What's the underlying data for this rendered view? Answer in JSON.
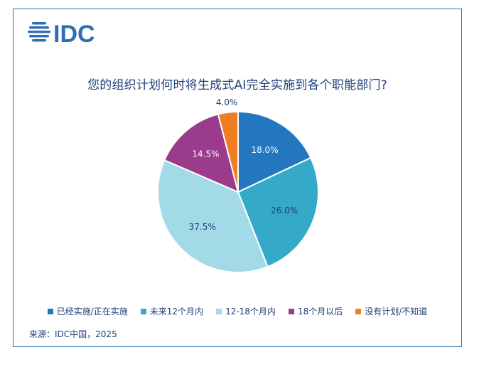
{
  "brand": {
    "logo_text": "IDC",
    "color": "#2f6db5"
  },
  "chart_data": {
    "type": "pie",
    "title": "您的组织计划何时将生成式AI完全实施到各个职能部门?",
    "slices": [
      {
        "label": "已经实施/正在实施",
        "value": 18.0,
        "display": "18.0%",
        "color": "#2277be"
      },
      {
        "label": "未来12个月内",
        "value": 26.0,
        "display": "26.0%",
        "color": "#34aac8"
      },
      {
        "label": "12-18个月内",
        "value": 37.5,
        "display": "37.5%",
        "color": "#a2dbe7"
      },
      {
        "label": "18个月以后",
        "value": 14.5,
        "display": "14.5%",
        "color": "#9b3b8c"
      },
      {
        "label": "没有计划/不知道",
        "value": 4.0,
        "display": "4.0%",
        "color": "#ee7d24"
      }
    ],
    "legend_position": "bottom"
  },
  "source": "来源：IDC中国，2025"
}
